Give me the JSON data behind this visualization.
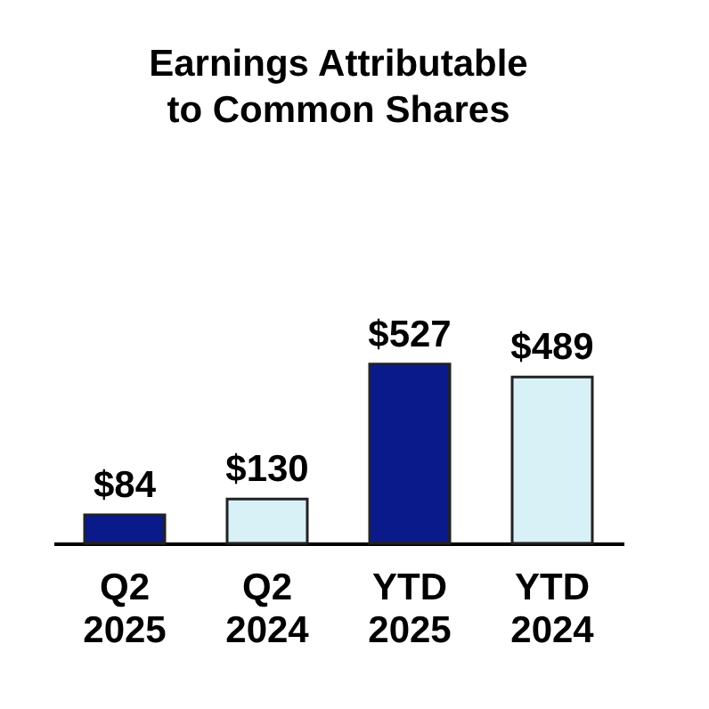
{
  "chart_data": {
    "type": "bar",
    "title": "Earnings Attributable\nto Common Shares",
    "categories": [
      "Q2 2025",
      "Q2 2024",
      "YTD 2025",
      "YTD 2024"
    ],
    "values": [
      84,
      130,
      527,
      489
    ],
    "colors": [
      "#0b1a8a",
      "#d8f1f6",
      "#0b1a8a",
      "#d8f1f6"
    ],
    "value_labels": [
      "$84",
      "$130",
      "$527",
      "$489"
    ],
    "grid": false
  }
}
